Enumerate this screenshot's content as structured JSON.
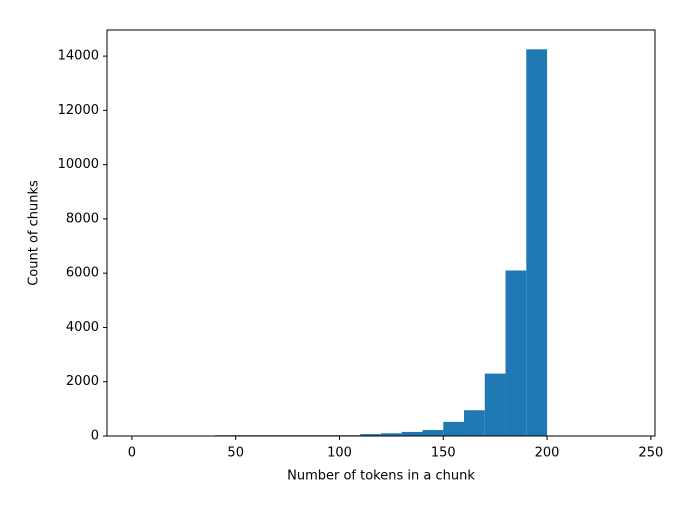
{
  "chart_data": {
    "type": "histogram",
    "x_label": "Number of tokens in a chunk",
    "y_label": "Count of chunks",
    "bins": [
      0,
      10,
      20,
      30,
      40,
      50,
      60,
      70,
      80,
      90,
      100,
      110,
      120,
      130,
      140,
      150,
      160,
      170,
      180,
      190,
      200,
      210,
      220,
      230,
      240
    ],
    "values": [
      0,
      0,
      0,
      0,
      30,
      30,
      30,
      30,
      30,
      30,
      30,
      70,
      100,
      150,
      220,
      520,
      950,
      2300,
      6100,
      14250,
      20,
      20,
      20,
      0
    ],
    "color": "#1f77b4",
    "xlim": [
      -12,
      252
    ],
    "xticks": [
      0,
      50,
      100,
      150,
      200,
      250
    ],
    "ylim": [
      0,
      14962
    ],
    "yticks": [
      0,
      2000,
      4000,
      6000,
      8000,
      10000,
      12000,
      14000
    ]
  }
}
